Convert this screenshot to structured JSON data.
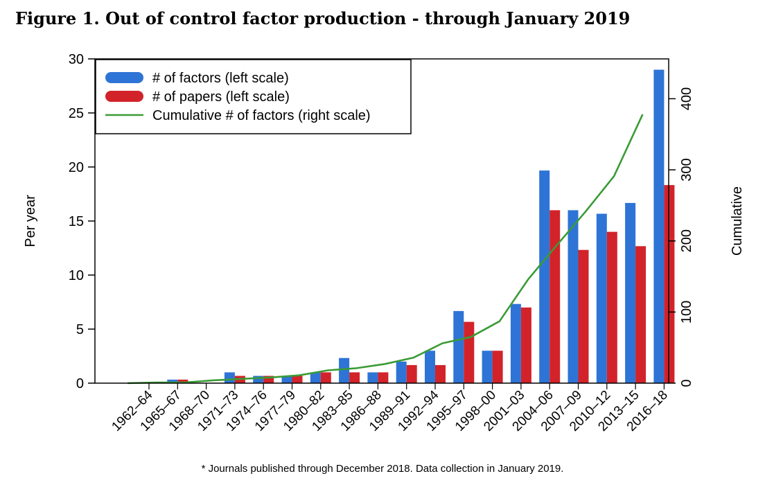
{
  "figure": {
    "title": "Figure 1. Out of control factor production - through January 2019",
    "footnote": "* Journals published through December 2018. Data collection in January 2019."
  },
  "chart_data": {
    "type": "bar",
    "categories": [
      "1962–64",
      "1965–67",
      "1968–70",
      "1971–73",
      "1974–76",
      "1977–79",
      "1980–82",
      "1983–85",
      "1986–88",
      "1989–91",
      "1992–94",
      "1995–97",
      "1998–00",
      "2001–03",
      "2004–06",
      "2007–09",
      "2010–12",
      "2013–15",
      "2016–18"
    ],
    "series": [
      {
        "name": "# of factors (left scale)",
        "type": "bar",
        "axis": "left",
        "color": "#2e74d6",
        "values": [
          0,
          0.33,
          0,
          1.0,
          0.67,
          0.67,
          1.0,
          2.33,
          1.0,
          2.0,
          3.0,
          6.67,
          3.0,
          7.33,
          19.67,
          16.0,
          15.67,
          16.67,
          29.0
        ]
      },
      {
        "name": "# of papers (left scale)",
        "type": "bar",
        "axis": "left",
        "color": "#d2232a",
        "values": [
          0,
          0.33,
          0,
          0.67,
          0.67,
          0.67,
          1.0,
          1.0,
          1.0,
          1.67,
          1.67,
          5.67,
          3.0,
          7.0,
          16.0,
          12.33,
          14.0,
          12.67,
          18.33
        ]
      },
      {
        "name": "Cumulative # of factors (right scale)",
        "type": "line",
        "axis": "right",
        "color": "#3a9b35",
        "values": [
          0,
          1,
          1,
          4,
          6,
          8,
          11,
          18,
          21,
          27,
          36,
          56,
          65,
          87,
          146,
          194,
          241,
          291,
          378
        ]
      }
    ],
    "ylabel": "Per year",
    "ylabel_right": "Cumulative",
    "ylim": [
      0,
      30
    ],
    "ylim_right": [
      0,
      456
    ],
    "yticks": [
      0,
      5,
      10,
      15,
      20,
      25,
      30
    ],
    "yticks_right": [
      0,
      100,
      200,
      300,
      400
    ],
    "legend": "top-left",
    "grid": false
  }
}
